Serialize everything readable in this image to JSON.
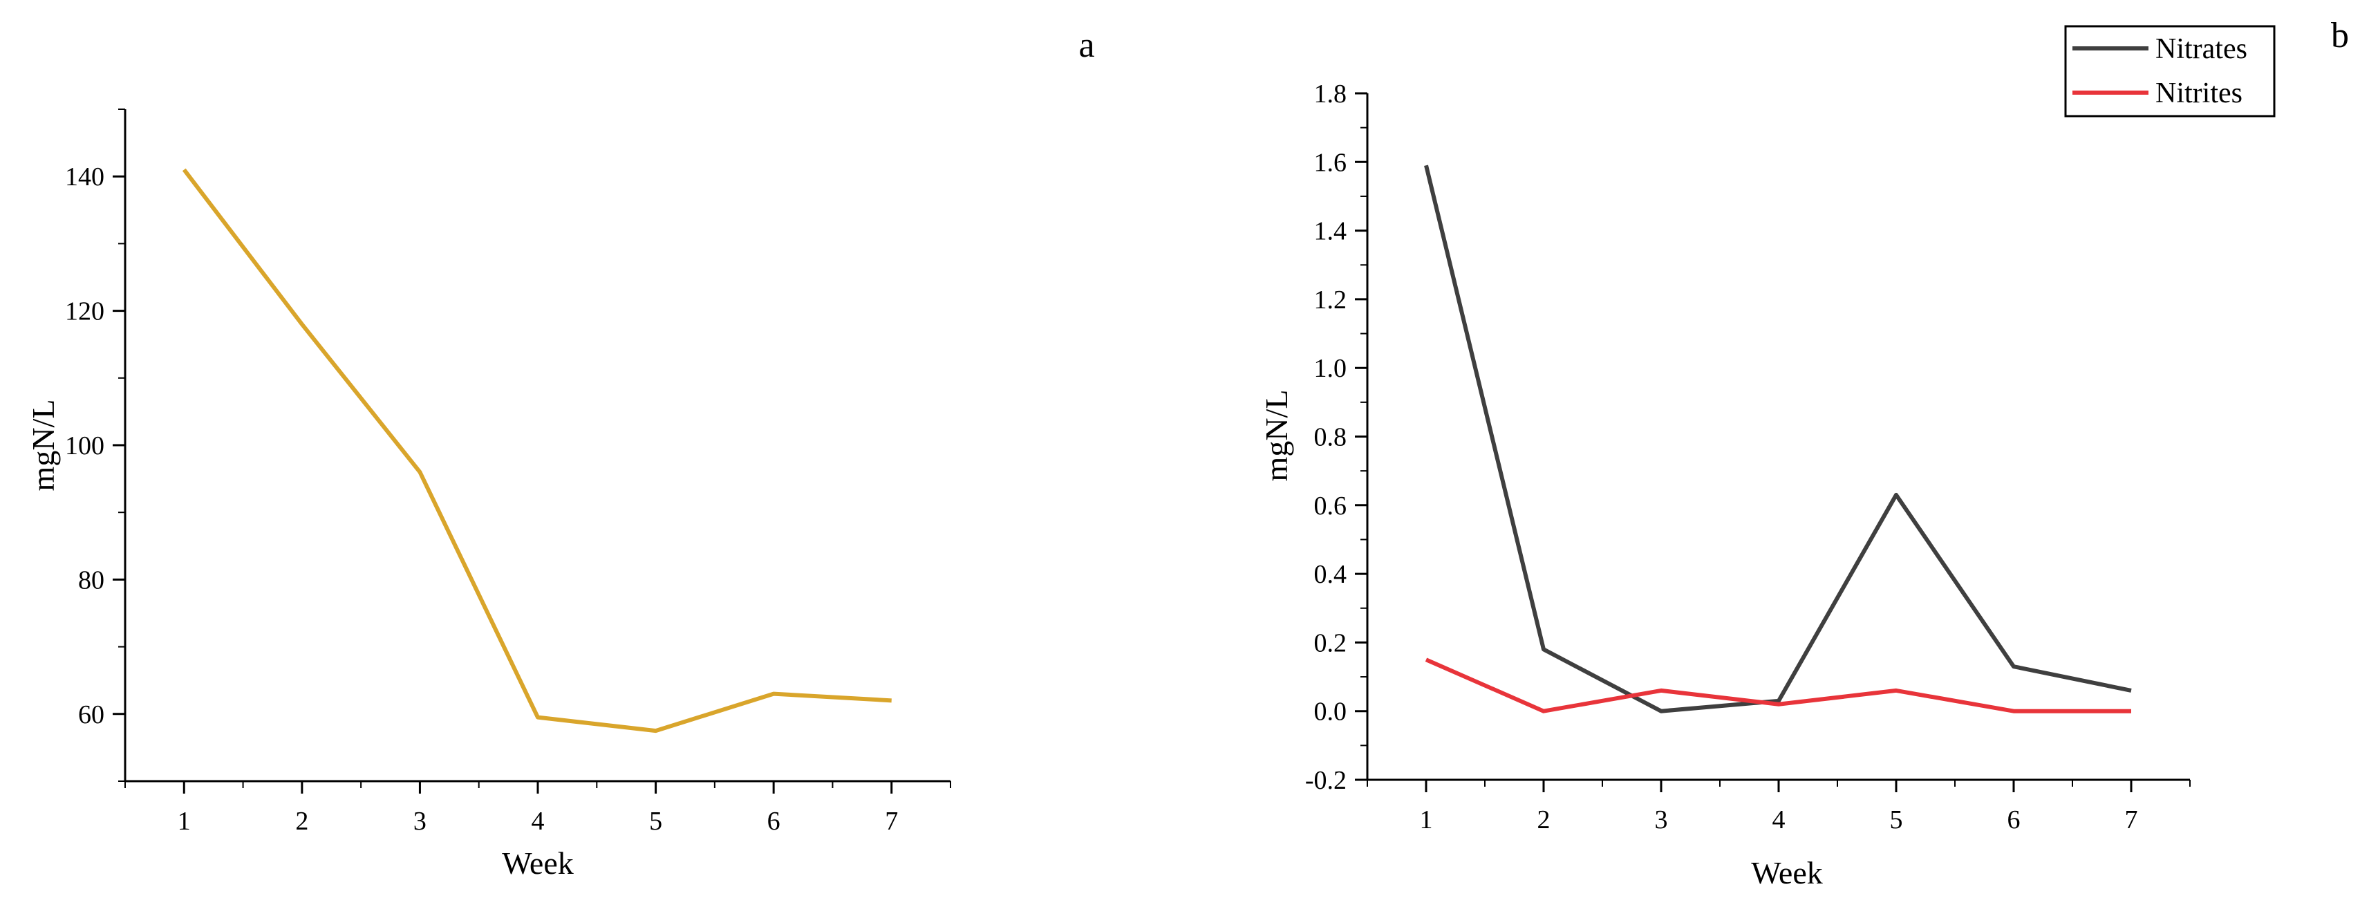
{
  "chart_data": [
    {
      "panel_label": "a",
      "type": "line",
      "title": "",
      "xlabel": "Week",
      "ylabel": "mgN/L",
      "xlim": [
        0.5,
        7.5
      ],
      "ylim": [
        50,
        150
      ],
      "x_ticks": [
        1,
        2,
        3,
        4,
        5,
        6,
        7
      ],
      "y_ticks": [
        60,
        80,
        100,
        120,
        140
      ],
      "grid": false,
      "legend": "none",
      "series": [
        {
          "name": "",
          "color": "#D9A52B",
          "x": [
            1,
            2,
            3,
            4,
            5,
            6,
            7
          ],
          "y": [
            141,
            118,
            96,
            59.5,
            57.5,
            63,
            62
          ]
        }
      ]
    },
    {
      "panel_label": "b",
      "type": "line",
      "title": "",
      "xlabel": "Week",
      "ylabel": "mgN/L",
      "xlim": [
        0.5,
        7.5
      ],
      "ylim": [
        -0.2,
        1.8
      ],
      "x_ticks": [
        1,
        2,
        3,
        4,
        5,
        6,
        7
      ],
      "y_ticks": [
        "-0.2",
        "0.0",
        "0.2",
        "0.4",
        "0.6",
        "0.8",
        "1.0",
        "1.2",
        "1.4",
        "1.6",
        "1.8"
      ],
      "grid": false,
      "legend": "top-right",
      "series": [
        {
          "name": "Nitrates",
          "color": "#3F3F3F",
          "x": [
            1,
            2,
            3,
            4,
            5,
            6,
            7
          ],
          "y": [
            1.59,
            0.18,
            0.0,
            0.03,
            0.63,
            0.13,
            0.06
          ]
        },
        {
          "name": "Nitrites",
          "color": "#E8343A",
          "x": [
            1,
            2,
            3,
            4,
            5,
            6,
            7
          ],
          "y": [
            0.15,
            0.0,
            0.06,
            0.02,
            0.06,
            0.0,
            0.0
          ]
        }
      ]
    }
  ]
}
